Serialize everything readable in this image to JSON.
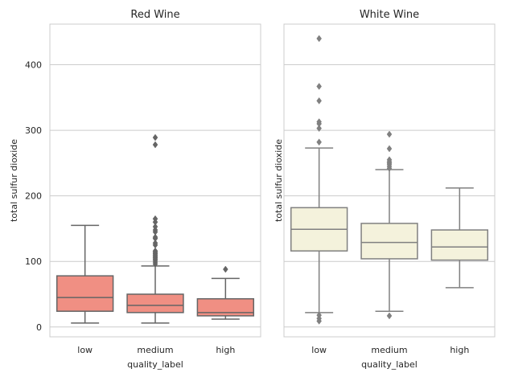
{
  "chart_data": [
    {
      "type": "box",
      "title": "Red Wine",
      "xlabel": "quality_label",
      "ylabel": "total sulfur dioxide",
      "categories": [
        "low",
        "medium",
        "high"
      ],
      "ylim": [
        -15,
        462
      ],
      "yticks": [
        0,
        100,
        200,
        300,
        400
      ],
      "show_ytick_labels": true,
      "box_color": "#f08f83",
      "line_color": "#656565",
      "grid": true,
      "boxes": [
        {
          "category": "low",
          "whisker_low": 6,
          "q1": 24,
          "median": 45,
          "q3": 78,
          "whisker_high": 155,
          "outliers": []
        },
        {
          "category": "medium",
          "whisker_low": 6,
          "q1": 22,
          "median": 33,
          "q3": 50,
          "whisker_high": 93,
          "outliers": [
            96,
            99,
            102,
            104,
            106,
            108,
            110,
            112,
            114,
            116,
            125,
            128,
            135,
            137,
            145,
            148,
            153,
            160,
            165,
            278,
            289
          ]
        },
        {
          "category": "high",
          "whisker_low": 12,
          "q1": 17,
          "median": 22,
          "q3": 43,
          "whisker_high": 74,
          "outliers": [
            88
          ]
        }
      ]
    },
    {
      "type": "box",
      "title": "White Wine",
      "xlabel": "quality_label",
      "ylabel": "total sulfur dioxide",
      "categories": [
        "low",
        "medium",
        "high"
      ],
      "ylim": [
        -15,
        462
      ],
      "yticks": [
        0,
        100,
        200,
        300,
        400
      ],
      "show_ytick_labels": false,
      "box_color": "#f4f2dc",
      "line_color": "#808080",
      "grid": true,
      "boxes": [
        {
          "category": "low",
          "whisker_low": 22,
          "q1": 116,
          "median": 149,
          "q3": 182,
          "whisker_high": 273,
          "outliers": [
            9,
            13,
            18,
            282,
            303,
            310,
            313,
            345,
            367,
            440
          ]
        },
        {
          "category": "medium",
          "whisker_low": 24,
          "q1": 104,
          "median": 129,
          "q3": 158,
          "whisker_high": 240,
          "outliers": [
            17,
            242,
            245,
            248,
            250,
            252,
            255,
            272,
            294
          ]
        },
        {
          "category": "high",
          "whisker_low": 60,
          "q1": 102,
          "median": 122,
          "q3": 148,
          "whisker_high": 212,
          "outliers": []
        }
      ]
    }
  ]
}
